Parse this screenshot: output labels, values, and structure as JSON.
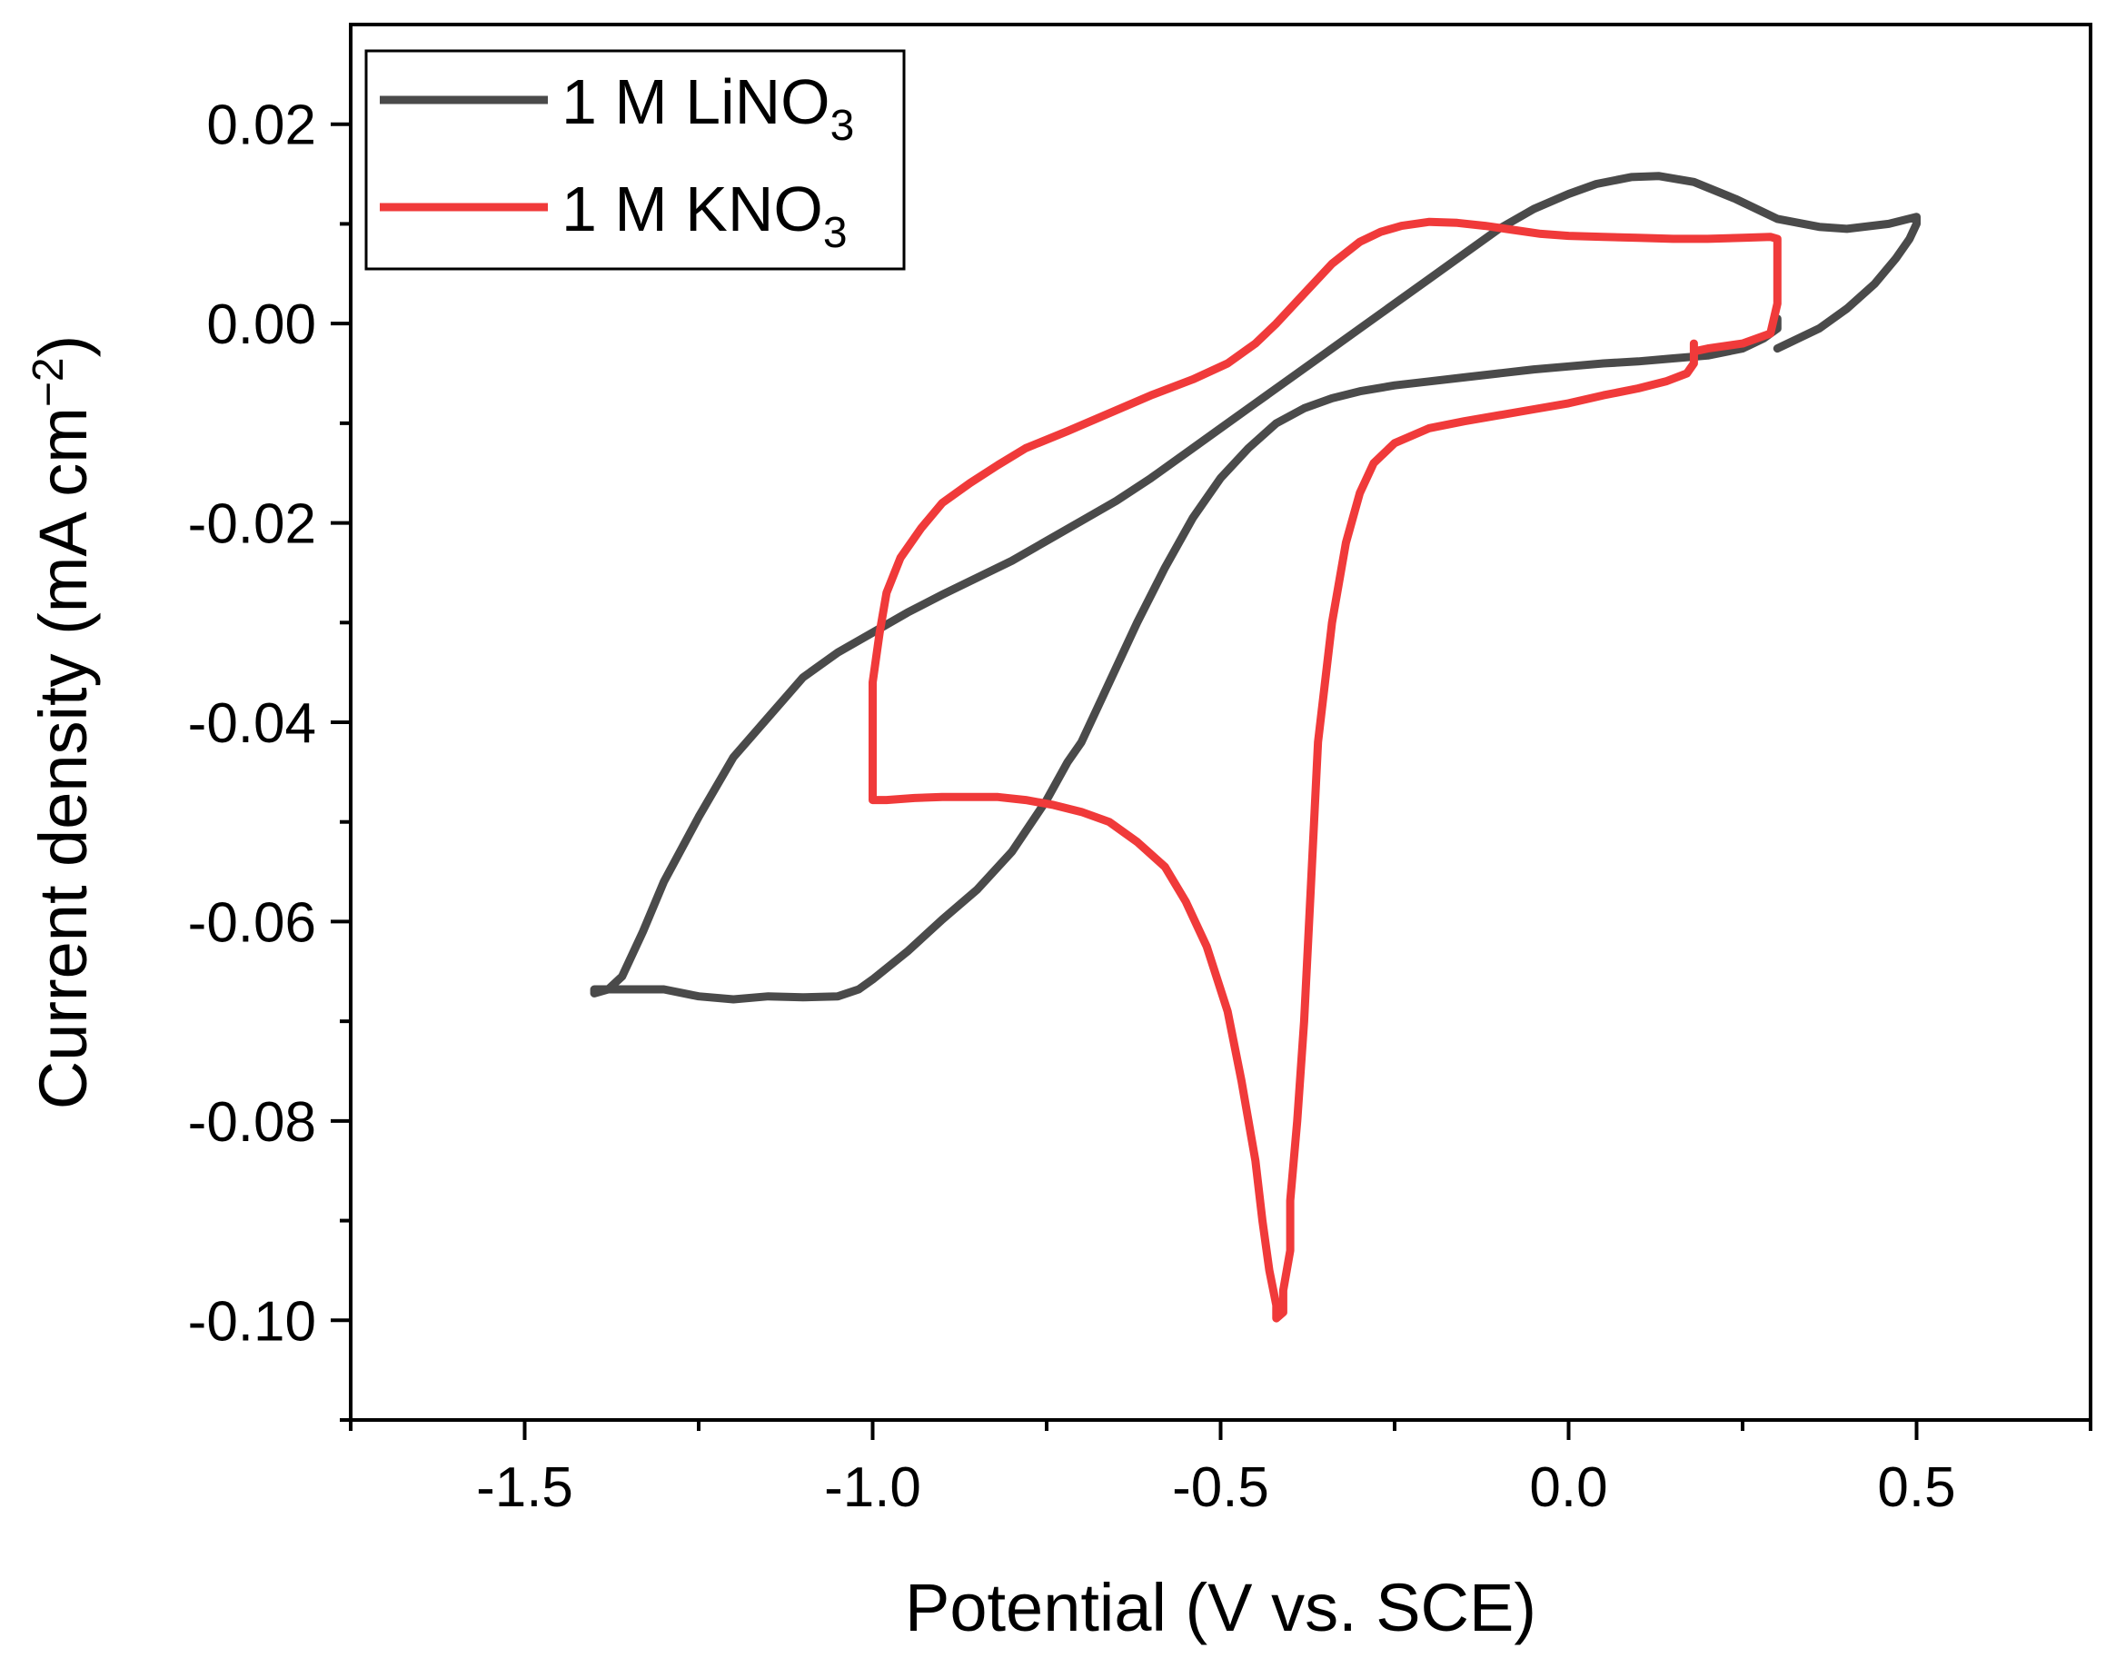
{
  "chart_data": {
    "type": "line",
    "title": "",
    "xlabel": "Potential (V vs. SCE)",
    "ylabel": "Current density (mA cm",
    "ylabel_unit_sup": "−2",
    "ylabel_close": ")",
    "xlim": [
      -1.75,
      0.75
    ],
    "ylim": [
      -0.11,
      0.03
    ],
    "x_ticks": [
      {
        "value": -1.5,
        "label": "-1.5"
      },
      {
        "value": -1.0,
        "label": "-1.0"
      },
      {
        "value": -0.5,
        "label": "-0.5"
      },
      {
        "value": 0.0,
        "label": "0.0"
      },
      {
        "value": 0.5,
        "label": "0.5"
      }
    ],
    "x_minor_ticks": [
      -1.75,
      -1.25,
      -0.75,
      -0.25,
      0.25,
      0.75
    ],
    "y_ticks": [
      {
        "value": 0.02,
        "label": "0.02"
      },
      {
        "value": 0.0,
        "label": "0.00"
      },
      {
        "value": -0.02,
        "label": "-0.02"
      },
      {
        "value": -0.04,
        "label": "-0.04"
      },
      {
        "value": -0.06,
        "label": "-0.06"
      },
      {
        "value": -0.08,
        "label": "-0.08"
      },
      {
        "value": -0.1,
        "label": "-0.10"
      }
    ],
    "y_minor_ticks": [
      0.01,
      -0.01,
      -0.03,
      -0.05,
      -0.07,
      -0.09,
      -0.11
    ],
    "legend_position": "top-left",
    "grid": false,
    "series": [
      {
        "name": "1 M LiNO",
        "name_sub": "3",
        "color": "#4a4a4a",
        "x": [
          0.3,
          0.33,
          0.36,
          0.4,
          0.44,
          0.47,
          0.49,
          0.5,
          0.5,
          0.46,
          0.4,
          0.36,
          0.3,
          0.24,
          0.18,
          0.13,
          0.09,
          0.04,
          0.0,
          -0.05,
          -0.1,
          -0.15,
          -0.2,
          -0.25,
          -0.3,
          -0.35,
          -0.4,
          -0.45,
          -0.5,
          -0.55,
          -0.6,
          -0.65,
          -0.7,
          -0.75,
          -0.8,
          -0.85,
          -0.9,
          -0.95,
          -1.0,
          -1.05,
          -1.1,
          -1.15,
          -1.2,
          -1.25,
          -1.3,
          -1.33,
          -1.36,
          -1.38,
          -1.4,
          -1.4,
          -1.36,
          -1.3,
          -1.25,
          -1.2,
          -1.15,
          -1.1,
          -1.05,
          -1.02,
          -1.0,
          -0.95,
          -0.9,
          -0.85,
          -0.8,
          -0.75,
          -0.72,
          -0.7,
          -0.67,
          -0.64,
          -0.62,
          -0.58,
          -0.54,
          -0.5,
          -0.46,
          -0.42,
          -0.38,
          -0.34,
          -0.3,
          -0.25,
          -0.2,
          -0.15,
          -0.1,
          -0.05,
          0.0,
          0.05,
          0.1,
          0.15,
          0.2,
          0.25,
          0.28,
          0.3,
          0.3
        ],
        "y": [
          -0.0025,
          -0.0015,
          -0.0005,
          0.0015,
          0.004,
          0.0065,
          0.0085,
          0.01,
          0.0107,
          0.01,
          0.0095,
          0.0097,
          0.0105,
          0.0125,
          0.0142,
          0.0148,
          0.0147,
          0.014,
          0.013,
          0.0115,
          0.0095,
          0.007,
          0.0045,
          0.002,
          -0.0005,
          -0.003,
          -0.0055,
          -0.008,
          -0.0105,
          -0.013,
          -0.0155,
          -0.0178,
          -0.0198,
          -0.0218,
          -0.0238,
          -0.0255,
          -0.0272,
          -0.029,
          -0.031,
          -0.033,
          -0.0355,
          -0.0395,
          -0.0435,
          -0.0495,
          -0.056,
          -0.061,
          -0.0655,
          -0.0668,
          -0.0672,
          -0.0668,
          -0.0668,
          -0.0668,
          -0.0675,
          -0.0678,
          -0.0675,
          -0.0676,
          -0.0675,
          -0.0668,
          -0.0658,
          -0.063,
          -0.0598,
          -0.0568,
          -0.053,
          -0.0478,
          -0.044,
          -0.042,
          -0.0375,
          -0.033,
          -0.03,
          -0.0245,
          -0.0195,
          -0.0155,
          -0.0125,
          -0.01,
          -0.0085,
          -0.0075,
          -0.0068,
          -0.0062,
          -0.0058,
          -0.0054,
          -0.005,
          -0.0046,
          -0.0043,
          -0.004,
          -0.0038,
          -0.0035,
          -0.0032,
          -0.0025,
          -0.0015,
          -0.0005,
          0.0005
        ]
      },
      {
        "name": "1 M KNO",
        "name_sub": "3",
        "color": "#f03a3a",
        "x": [
          0.18,
          0.18,
          0.17,
          0.14,
          0.1,
          0.05,
          0.0,
          -0.05,
          -0.1,
          -0.15,
          -0.2,
          -0.25,
          -0.28,
          -0.3,
          -0.32,
          -0.34,
          -0.36,
          -0.37,
          -0.38,
          -0.39,
          -0.4,
          -0.4,
          -0.41,
          -0.41,
          -0.42,
          -0.42,
          -0.43,
          -0.44,
          -0.45,
          -0.47,
          -0.49,
          -0.52,
          -0.55,
          -0.58,
          -0.62,
          -0.66,
          -0.7,
          -0.74,
          -0.78,
          -0.82,
          -0.86,
          -0.9,
          -0.94,
          -0.98,
          -1.0,
          -1.0,
          -1.0,
          -0.99,
          -0.98,
          -0.96,
          -0.93,
          -0.9,
          -0.86,
          -0.82,
          -0.78,
          -0.72,
          -0.66,
          -0.6,
          -0.54,
          -0.49,
          -0.45,
          -0.42,
          -0.38,
          -0.34,
          -0.3,
          -0.27,
          -0.24,
          -0.2,
          -0.16,
          -0.12,
          -0.08,
          -0.04,
          0.0,
          0.05,
          0.1,
          0.15,
          0.2,
          0.25,
          0.29,
          0.3,
          0.3,
          0.3,
          0.29,
          0.25,
          0.2,
          0.18
        ],
        "y": [
          -0.002,
          -0.004,
          -0.005,
          -0.0058,
          -0.0065,
          -0.0072,
          -0.008,
          -0.0086,
          -0.0092,
          -0.0098,
          -0.0105,
          -0.012,
          -0.014,
          -0.017,
          -0.022,
          -0.03,
          -0.042,
          -0.056,
          -0.07,
          -0.08,
          -0.088,
          -0.093,
          -0.097,
          -0.0992,
          -0.0998,
          -0.0985,
          -0.095,
          -0.09,
          -0.084,
          -0.076,
          -0.069,
          -0.0625,
          -0.058,
          -0.0545,
          -0.052,
          -0.05,
          -0.049,
          -0.0483,
          -0.0478,
          -0.0475,
          -0.0475,
          -0.0475,
          -0.0476,
          -0.0478,
          -0.0478,
          -0.042,
          -0.036,
          -0.031,
          -0.027,
          -0.0235,
          -0.0205,
          -0.018,
          -0.016,
          -0.0142,
          -0.0125,
          -0.0108,
          -0.009,
          -0.0072,
          -0.0056,
          -0.004,
          -0.002,
          0.0,
          0.003,
          0.006,
          0.0082,
          0.0092,
          0.0098,
          0.0102,
          0.0101,
          0.0098,
          0.0094,
          0.009,
          0.0088,
          0.0087,
          0.0086,
          0.0085,
          0.0085,
          0.0086,
          0.0087,
          0.0085,
          0.006,
          0.002,
          -0.001,
          -0.002,
          -0.0025,
          -0.0028
        ]
      }
    ]
  }
}
